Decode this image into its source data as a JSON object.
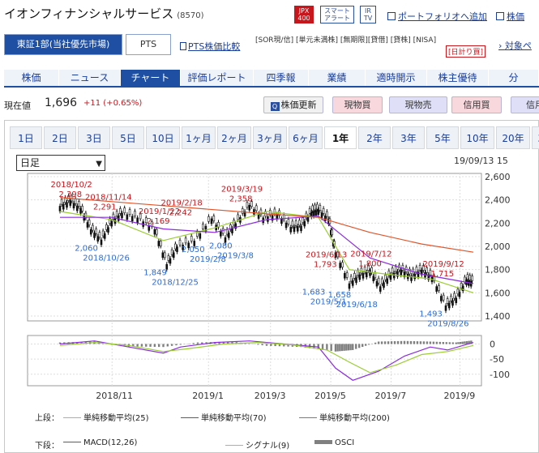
{
  "company": {
    "name": "イオンフィナンシャルサービス",
    "code": "(8570)"
  },
  "badges": {
    "jpx": "JPX\n400",
    "smart": "スマート\nアラート",
    "ir": "IR\nTV"
  },
  "top_links": {
    "portfolio": "ポートフォリオへ追加",
    "stocks": "株価"
  },
  "market_tabs": {
    "primary": "東証1部(当社優先市場)",
    "pts": "PTS"
  },
  "pts_compare": "PTS株価比較",
  "category_tags": "[SOR現/信]  [単元未満株]  [無期限][貸借]  [貸株]  [NISA]",
  "category_tag2": "[日計り買]",
  "target_link": "対象ペ",
  "nav": [
    "株価",
    "ニュース",
    "チャート",
    "評価レポート",
    "四季報",
    "業績",
    "適時開示",
    "株主優待",
    "分"
  ],
  "price": {
    "label": "現在値",
    "value": "1,696",
    "change": "+11 (+0.65%)"
  },
  "price_buttons": {
    "refresh": "株価更新",
    "buy": "現物買",
    "sell": "現物売",
    "margin_buy": "信用買",
    "margin_sell": "信用"
  },
  "ranges": [
    "1日",
    "2日",
    "3日",
    "5日",
    "10日",
    "1ヶ月",
    "2ヶ月",
    "3ヶ月",
    "6ヶ月",
    "1年",
    "2年",
    "3年",
    "5年",
    "10年",
    "20年",
    "30年"
  ],
  "active_range": "1年",
  "chart_controls": {
    "period": "日足",
    "date": "19/09/13 15"
  },
  "legend": {
    "upper_label": "上段：",
    "lower_label": "下段：",
    "sma25": "単純移動平均(25)",
    "sma70": "単純移動平均(70)",
    "sma200": "単純移動平均(200)",
    "macd": "MACD(12,26)",
    "signal": "シグナル(9)",
    "osci": "OSCI"
  },
  "colors": {
    "sma25": "#9acd32",
    "sma70": "#8a2be2",
    "sma200": "#e0552b",
    "macd": "#8a2be2",
    "signal": "#9acd32",
    "osci": "#808080",
    "accent": "#1e4fa3"
  },
  "chart_data": [
    {
      "type": "line",
      "title": "",
      "y_ticks": [
        "2,600",
        "2,400",
        "2,200",
        "2,000",
        "1,800",
        "1,600",
        "1,400"
      ],
      "x_ticks": [
        "2018/11",
        "2019/1",
        "2019/3",
        "2019/5",
        "2019/7",
        "2019/9"
      ],
      "ylim": [
        1400,
        2600
      ],
      "series": [
        {
          "name": "",
          "style": "candlestick",
          "points": [
            [
              0,
              2350
            ],
            [
              6,
              2398
            ],
            [
              12,
              2330
            ],
            [
              18,
              2150
            ],
            [
              24,
              2060
            ],
            [
              30,
              2220
            ],
            [
              36,
              2291
            ],
            [
              45,
              2250
            ],
            [
              55,
              2150
            ],
            [
              62,
              1849
            ],
            [
              68,
              2000
            ],
            [
              78,
              2050
            ],
            [
              88,
              2242
            ],
            [
              96,
              2080
            ],
            [
              102,
              2200
            ],
            [
              110,
              2358
            ],
            [
              118,
              2250
            ],
            [
              126,
              2280
            ],
            [
              134,
              2169
            ],
            [
              140,
              2180
            ],
            [
              146,
              2300
            ],
            [
              150,
              2320
            ],
            [
              156,
              2240
            ],
            [
              160,
              1950
            ],
            [
              168,
              1683
            ],
            [
              174,
              1760
            ],
            [
              180,
              1793
            ],
            [
              186,
              1658
            ],
            [
              192,
              1760
            ],
            [
              198,
              1800
            ],
            [
              204,
              1750
            ],
            [
              210,
              1800
            ],
            [
              216,
              1740
            ],
            [
              224,
              1493
            ],
            [
              230,
              1560
            ],
            [
              236,
              1715
            ],
            [
              240,
              1696
            ]
          ]
        },
        {
          "name": "単純移動平均(25)",
          "points": [
            [
              0,
              2300
            ],
            [
              30,
              2230
            ],
            [
              60,
              2050
            ],
            [
              90,
              2160
            ],
            [
              120,
              2300
            ],
            [
              150,
              2250
            ],
            [
              168,
              1800
            ],
            [
              190,
              1760
            ],
            [
              215,
              1720
            ],
            [
              240,
              1600
            ]
          ]
        },
        {
          "name": "単純移動平均(70)",
          "points": [
            [
              0,
              2250
            ],
            [
              30,
              2250
            ],
            [
              60,
              2150
            ],
            [
              90,
              2120
            ],
            [
              120,
              2230
            ],
            [
              150,
              2260
            ],
            [
              180,
              1900
            ],
            [
              210,
              1760
            ],
            [
              240,
              1680
            ]
          ]
        },
        {
          "name": "単純移動平均(200)",
          "points": [
            [
              0,
              2420
            ],
            [
              60,
              2350
            ],
            [
              120,
              2280
            ],
            [
              150,
              2250
            ],
            [
              180,
              2120
            ],
            [
              210,
              2020
            ],
            [
              240,
              1950
            ]
          ]
        }
      ],
      "annotations": [
        {
          "label": "2018/10/2",
          "value": "2,398",
          "kind": "high"
        },
        {
          "label": "2018/11/14",
          "value": "2,291",
          "kind": "high"
        },
        {
          "label": "2019/1/22",
          "value": "2,169",
          "kind": "high"
        },
        {
          "label": "2019/2/18",
          "value": "2,242",
          "kind": "high"
        },
        {
          "label": "2019/3/19",
          "value": "2,358",
          "kind": "high"
        },
        {
          "label": "2019/6/13",
          "value": "1,793",
          "kind": "high"
        },
        {
          "label": "2019/7/12",
          "value": "1,800",
          "kind": "high"
        },
        {
          "label": "2019/9/12",
          "value": "1,715",
          "kind": "high"
        },
        {
          "label": "2018/10/26",
          "value": "2,060",
          "kind": "low"
        },
        {
          "label": "2018/12/25",
          "value": "1,849",
          "kind": "low"
        },
        {
          "label": "2019/2/8",
          "value": "2,050",
          "kind": "low"
        },
        {
          "label": "2019/3/8",
          "value": "2,080",
          "kind": "low"
        },
        {
          "label": "2019/5/1",
          "value": "1,683",
          "kind": "low"
        },
        {
          "label": "2019/6/18",
          "value": "1,658",
          "kind": "low"
        },
        {
          "label": "2019/8/26",
          "value": "1,493",
          "kind": "low"
        }
      ]
    },
    {
      "type": "line",
      "title": "",
      "y_ticks": [
        "0",
        "-50",
        "-100"
      ],
      "ylim": [
        -130,
        20
      ],
      "series": [
        {
          "name": "MACD(12,26)",
          "points": [
            [
              0,
              0
            ],
            [
              20,
              10
            ],
            [
              40,
              -10
            ],
            [
              60,
              -30
            ],
            [
              70,
              -10
            ],
            [
              90,
              5
            ],
            [
              110,
              10
            ],
            [
              130,
              0
            ],
            [
              150,
              -10
            ],
            [
              160,
              -80
            ],
            [
              170,
              -120
            ],
            [
              185,
              -90
            ],
            [
              200,
              -40
            ],
            [
              215,
              -10
            ],
            [
              225,
              -20
            ],
            [
              240,
              5
            ]
          ]
        },
        {
          "name": "シグナル(9)",
          "points": [
            [
              0,
              -5
            ],
            [
              20,
              5
            ],
            [
              40,
              -5
            ],
            [
              60,
              -25
            ],
            [
              75,
              -15
            ],
            [
              95,
              0
            ],
            [
              115,
              5
            ],
            [
              135,
              -3
            ],
            [
              155,
              -20
            ],
            [
              168,
              -60
            ],
            [
              180,
              -95
            ],
            [
              195,
              -70
            ],
            [
              210,
              -35
            ],
            [
              225,
              -25
            ],
            [
              240,
              -5
            ]
          ]
        },
        {
          "name": "OSCI",
          "style": "bar",
          "points": [
            [
              0,
              5
            ],
            [
              20,
              8
            ],
            [
              40,
              -8
            ],
            [
              60,
              -10
            ],
            [
              80,
              5
            ],
            [
              100,
              8
            ],
            [
              120,
              -6
            ],
            [
              140,
              -10
            ],
            [
              160,
              -25
            ],
            [
              170,
              -20
            ],
            [
              185,
              8
            ],
            [
              200,
              10
            ],
            [
              215,
              8
            ],
            [
              230,
              5
            ],
            [
              240,
              12
            ]
          ]
        }
      ]
    }
  ]
}
